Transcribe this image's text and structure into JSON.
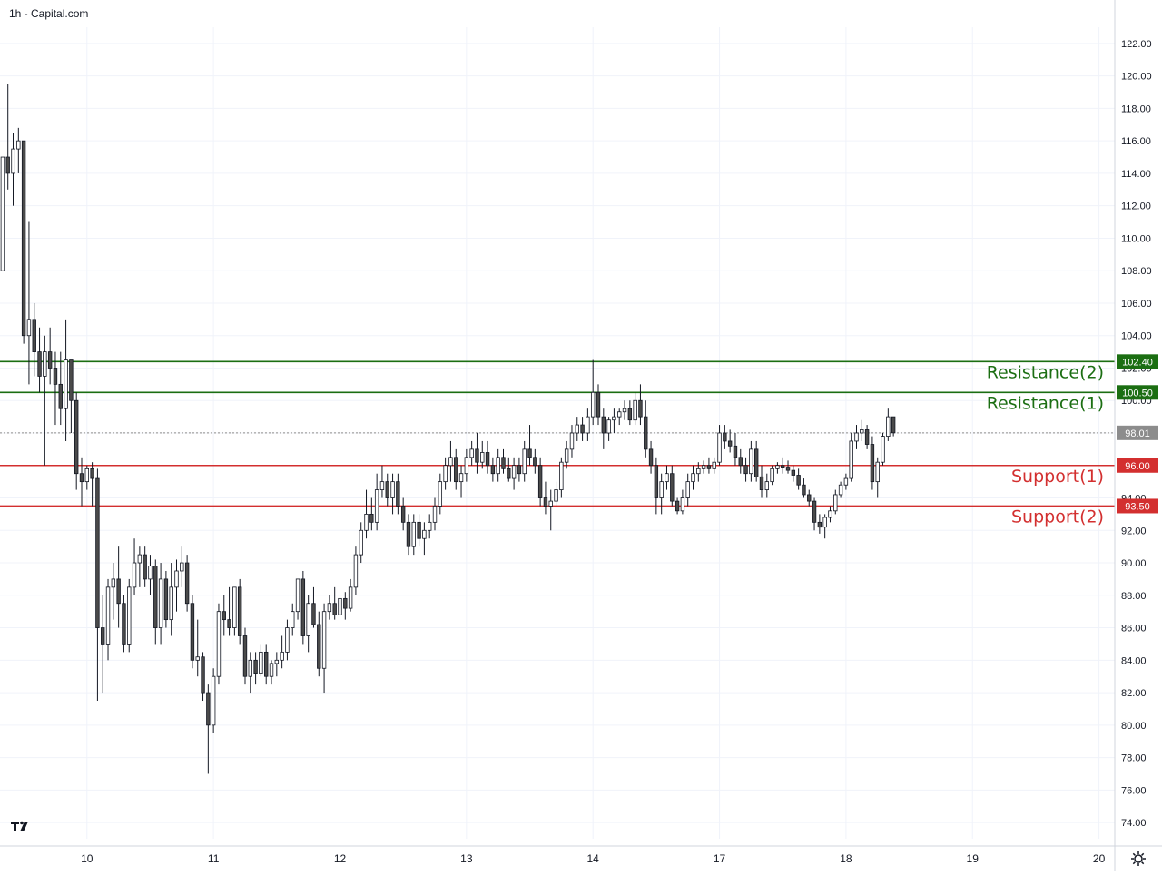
{
  "header": {
    "title": "1h - Capital.com"
  },
  "logo": {
    "icon": "tradingview-logo-icon"
  },
  "settings": {
    "icon": "gear-icon"
  },
  "colors": {
    "background": "#ffffff",
    "grid": "#f0f3fa",
    "candle_up_fill": "#ffffff",
    "candle_down_fill": "#4a4a4a",
    "candle_border": "#131722",
    "resistance": "#1b6e12",
    "support": "#d32f2f",
    "last_price": "#8c8c8c",
    "axis_text": "#131722"
  },
  "chart_data": {
    "type": "candlestick",
    "ylim": [
      73,
      123
    ],
    "y_ticks": [
      "122.00",
      "120.00",
      "118.00",
      "116.00",
      "114.00",
      "112.00",
      "110.00",
      "108.00",
      "106.00",
      "104.00",
      "102.00",
      "100.00",
      "98.00",
      "96.00",
      "94.00",
      "92.00",
      "90.00",
      "88.00",
      "86.00",
      "84.00",
      "82.00",
      "80.00",
      "78.00",
      "76.00",
      "74.00"
    ],
    "x_ticks": [
      {
        "label": "10",
        "t": 16
      },
      {
        "label": "11",
        "t": 40
      },
      {
        "label": "12",
        "t": 64
      },
      {
        "label": "13",
        "t": 88
      },
      {
        "label": "14",
        "t": 112
      },
      {
        "label": "17",
        "t": 136
      },
      {
        "label": "18",
        "t": 160
      },
      {
        "label": "19",
        "t": 184
      },
      {
        "label": "20",
        "t": 208
      }
    ],
    "x_range": [
      -0.5,
      211
    ],
    "levels": [
      {
        "name": "Resistance(2)",
        "value": 102.4,
        "label": "102.40",
        "kind": "resistance"
      },
      {
        "name": "Resistance(1)",
        "value": 100.5,
        "label": "100.50",
        "kind": "resistance"
      },
      {
        "name": "Support(1)",
        "value": 96.0,
        "label": "96.00",
        "kind": "support"
      },
      {
        "name": "Support(2)",
        "value": 93.5,
        "label": "93.50",
        "kind": "support"
      }
    ],
    "last_price": {
      "value": 98.01,
      "label": "98.01"
    },
    "candles": [
      [
        0,
        108,
        115,
        108,
        115
      ],
      [
        1,
        115,
        119.5,
        113,
        114
      ],
      [
        2,
        114,
        116.5,
        112,
        115.5
      ],
      [
        3,
        115.5,
        116.8,
        114,
        116
      ],
      [
        4,
        116,
        116,
        103.5,
        104
      ],
      [
        5,
        104,
        111,
        101,
        105
      ],
      [
        6,
        105,
        106,
        101.5,
        103
      ],
      [
        7,
        103,
        104.5,
        100.5,
        101.5
      ],
      [
        8,
        101.5,
        104,
        96,
        103
      ],
      [
        9,
        103,
        104.5,
        101,
        102
      ],
      [
        10,
        102,
        103,
        98.5,
        101
      ],
      [
        11,
        101,
        103,
        98.5,
        99.5
      ],
      [
        12,
        99.5,
        105,
        97.5,
        102.5
      ],
      [
        13,
        102.5,
        102.5,
        98,
        100
      ],
      [
        14,
        100,
        100.5,
        94.5,
        95.5
      ],
      [
        15,
        95.5,
        96.5,
        93.5,
        95
      ],
      [
        16,
        95,
        96,
        94.5,
        95.8
      ],
      [
        17,
        95.8,
        96.2,
        93.5,
        95.2
      ],
      [
        18,
        95.2,
        95.8,
        81.5,
        86
      ],
      [
        19,
        86,
        88,
        82,
        85
      ],
      [
        20,
        85,
        89,
        84,
        88.5
      ],
      [
        21,
        88.5,
        90,
        86.5,
        89
      ],
      [
        22,
        89,
        91,
        86,
        87.5
      ],
      [
        23,
        87.5,
        88,
        84.5,
        85
      ],
      [
        24,
        85,
        89,
        84.5,
        88.5
      ],
      [
        25,
        88.5,
        91.5,
        88,
        90
      ],
      [
        26,
        90,
        91,
        88.5,
        90.5
      ],
      [
        27,
        90.5,
        91,
        88.5,
        89
      ],
      [
        28,
        89,
        90.5,
        88,
        89.8
      ],
      [
        29,
        89.8,
        90.2,
        85,
        86
      ],
      [
        30,
        86,
        90,
        85,
        89
      ],
      [
        31,
        89,
        89.5,
        86,
        86.5
      ],
      [
        32,
        86.5,
        90,
        85.5,
        88.5
      ],
      [
        33,
        88.5,
        90.2,
        87,
        89.5
      ],
      [
        34,
        89.5,
        91,
        88.5,
        90
      ],
      [
        35,
        90,
        90.5,
        87,
        87.5
      ],
      [
        36,
        87.5,
        88,
        83.5,
        84
      ],
      [
        37,
        84,
        86.5,
        83,
        84.2
      ],
      [
        38,
        84.2,
        84.5,
        81.5,
        82
      ],
      [
        39,
        82,
        82.5,
        77,
        80
      ],
      [
        40,
        80,
        83.5,
        79.5,
        83
      ],
      [
        41,
        83,
        87.5,
        82.5,
        87
      ],
      [
        42,
        87,
        88,
        85.5,
        86.5
      ],
      [
        43,
        86.5,
        88.5,
        85.5,
        86
      ],
      [
        44,
        86,
        88.5,
        85.5,
        88.5
      ],
      [
        45,
        88.5,
        89,
        85,
        85.5
      ],
      [
        46,
        85.5,
        86,
        82.5,
        83
      ],
      [
        47,
        83,
        84.5,
        82,
        84
      ],
      [
        48,
        84,
        84.5,
        82.5,
        83.2
      ],
      [
        49,
        83.2,
        85,
        83,
        84.5
      ],
      [
        50,
        84.5,
        85,
        82.5,
        83
      ],
      [
        51,
        83,
        84,
        82.5,
        83.8
      ],
      [
        52,
        83.8,
        84.5,
        83,
        84
      ],
      [
        53,
        84,
        85.5,
        83.5,
        84.5
      ],
      [
        54,
        84.5,
        86.5,
        84,
        86
      ],
      [
        55,
        86,
        87.5,
        85.5,
        87
      ],
      [
        56,
        87,
        89,
        86.5,
        89
      ],
      [
        57,
        89,
        89.5,
        85,
        85.5
      ],
      [
        58,
        85.5,
        88,
        84.5,
        87.5
      ],
      [
        59,
        87.5,
        88.5,
        86,
        86.2
      ],
      [
        60,
        86.2,
        87,
        83,
        83.5
      ],
      [
        61,
        83.5,
        87.5,
        82,
        87
      ],
      [
        62,
        87,
        88,
        86.5,
        87.5
      ],
      [
        63,
        87.5,
        88.5,
        86.5,
        86.8
      ],
      [
        64,
        86.8,
        88,
        86,
        87.8
      ],
      [
        65,
        87.8,
        88.2,
        86.5,
        87.2
      ],
      [
        66,
        87.2,
        89,
        87,
        88.5
      ],
      [
        67,
        88.5,
        91,
        88,
        90.5
      ],
      [
        68,
        90.5,
        92.5,
        90,
        92
      ],
      [
        69,
        92,
        94.5,
        91.5,
        93
      ],
      [
        70,
        93,
        94,
        92,
        92.5
      ],
      [
        71,
        92.5,
        95.5,
        92,
        94.5
      ],
      [
        72,
        94.5,
        96,
        94,
        95
      ],
      [
        73,
        95,
        95.5,
        93.5,
        94
      ],
      [
        74,
        94,
        95.5,
        93,
        95
      ],
      [
        75,
        95,
        95.5,
        93,
        93.5
      ],
      [
        76,
        93.5,
        94,
        92,
        92.5
      ],
      [
        77,
        92.5,
        93,
        90.5,
        91
      ],
      [
        78,
        91,
        93,
        90.5,
        92.5
      ],
      [
        79,
        92.5,
        93,
        91,
        91.5
      ],
      [
        80,
        91.5,
        92.5,
        90.5,
        92
      ],
      [
        81,
        92,
        93,
        91.5,
        92.5
      ],
      [
        82,
        92.5,
        94,
        92,
        93.5
      ],
      [
        83,
        93.5,
        95.5,
        93,
        95
      ],
      [
        84,
        95,
        96.5,
        94.5,
        96
      ],
      [
        85,
        96,
        97.5,
        95,
        96.5
      ],
      [
        86,
        96.5,
        97,
        94.5,
        95
      ],
      [
        87,
        95,
        96,
        94,
        95.5
      ],
      [
        88,
        95.5,
        97,
        95,
        96.5
      ],
      [
        89,
        96.5,
        97.5,
        96,
        97
      ],
      [
        90,
        97,
        98,
        95.5,
        96.2
      ],
      [
        91,
        96.2,
        97.5,
        95.8,
        96.8
      ],
      [
        92,
        96.8,
        97.5,
        95.5,
        96
      ],
      [
        93,
        96,
        96.5,
        95,
        95.5
      ],
      [
        94,
        95.5,
        97,
        95,
        96.5
      ],
      [
        95,
        96.5,
        97,
        95.5,
        95.8
      ],
      [
        96,
        95.8,
        96.5,
        95,
        95.2
      ],
      [
        97,
        95.2,
        96.5,
        94.5,
        96
      ],
      [
        98,
        96,
        96.5,
        95,
        95.5
      ],
      [
        99,
        95.5,
        97.5,
        95,
        97
      ],
      [
        100,
        97,
        98.5,
        96,
        96.5
      ],
      [
        101,
        96.5,
        97,
        95.5,
        96
      ],
      [
        102,
        96,
        96.5,
        93.5,
        94
      ],
      [
        103,
        94,
        95,
        93,
        93.5
      ],
      [
        104,
        93.5,
        94.5,
        92,
        93.8
      ],
      [
        105,
        93.8,
        95,
        93.5,
        94.5
      ],
      [
        106,
        94.5,
        96.5,
        94,
        96.2
      ],
      [
        107,
        96.2,
        97.5,
        95.8,
        97
      ],
      [
        108,
        97,
        98.5,
        96.5,
        98
      ],
      [
        109,
        98,
        99,
        97.5,
        98.5
      ],
      [
        110,
        98.5,
        99,
        97.5,
        98
      ],
      [
        111,
        98,
        99.5,
        97.5,
        99
      ],
      [
        112,
        99,
        102.5,
        98.5,
        100.5
      ],
      [
        113,
        100.5,
        101,
        98.5,
        99
      ],
      [
        114,
        99,
        99.5,
        97,
        98
      ],
      [
        115,
        98,
        99,
        97.5,
        98.8
      ],
      [
        116,
        98.8,
        99.5,
        98,
        99
      ],
      [
        117,
        99,
        99.5,
        98.5,
        99.3
      ],
      [
        118,
        99.3,
        100,
        98.8,
        99.5
      ],
      [
        119,
        99.5,
        100,
        98.5,
        98.8
      ],
      [
        120,
        98.8,
        100.5,
        98.5,
        100
      ],
      [
        121,
        100,
        101,
        98.5,
        99
      ],
      [
        122,
        99,
        100,
        96.5,
        97
      ],
      [
        123,
        97,
        97.5,
        95.5,
        96
      ],
      [
        124,
        96,
        96.5,
        93,
        94
      ],
      [
        125,
        94,
        95.5,
        93,
        95
      ],
      [
        126,
        95,
        96,
        94.5,
        95.5
      ],
      [
        127,
        95.5,
        96,
        93.5,
        93.8
      ],
      [
        128,
        93.8,
        94,
        93,
        93.2
      ],
      [
        129,
        93.2,
        94.5,
        93,
        94
      ],
      [
        130,
        94,
        95.5,
        93.5,
        95
      ],
      [
        131,
        95,
        96,
        94.5,
        95.5
      ],
      [
        132,
        95.5,
        96.2,
        95,
        95.8
      ],
      [
        133,
        95.8,
        96.3,
        95.5,
        96
      ],
      [
        134,
        96,
        96.5,
        95.5,
        95.8
      ],
      [
        135,
        95.8,
        96.5,
        95.5,
        96.2
      ],
      [
        136,
        96.2,
        98.5,
        96,
        98
      ],
      [
        137,
        98,
        98.5,
        97,
        97.5
      ],
      [
        138,
        97.5,
        98.2,
        96.8,
        97.2
      ],
      [
        139,
        97.2,
        98,
        96,
        96.5
      ],
      [
        140,
        96.5,
        97,
        95.5,
        96
      ],
      [
        141,
        96,
        96.5,
        95,
        95.5
      ],
      [
        142,
        95.5,
        97.5,
        95,
        97
      ],
      [
        143,
        97,
        97.5,
        95,
        95.3
      ],
      [
        144,
        95.3,
        96,
        94,
        94.5
      ],
      [
        145,
        94.5,
        95.5,
        94,
        95
      ],
      [
        146,
        95,
        96,
        94.8,
        95.8
      ],
      [
        147,
        95.8,
        96.2,
        95.5,
        96
      ],
      [
        148,
        96,
        96.5,
        95.5,
        95.9
      ],
      [
        149,
        95.9,
        96.3,
        95.5,
        95.7
      ],
      [
        150,
        95.7,
        96,
        95,
        95.4
      ],
      [
        151,
        95.4,
        95.8,
        94.5,
        94.8
      ],
      [
        152,
        94.8,
        95.2,
        94,
        94.2
      ],
      [
        153,
        94.2,
        94.5,
        93.5,
        93.8
      ],
      [
        154,
        93.8,
        94,
        92,
        92.5
      ],
      [
        155,
        92.5,
        93,
        91.8,
        92.2
      ],
      [
        156,
        92.2,
        93,
        91.5,
        92.8
      ],
      [
        157,
        92.8,
        93.5,
        92.5,
        93.2
      ],
      [
        158,
        93.2,
        94.5,
        93,
        94.2
      ],
      [
        159,
        94.2,
        95,
        94,
        94.8
      ],
      [
        160,
        94.8,
        95.5,
        94.5,
        95.2
      ],
      [
        161,
        95.2,
        98,
        95,
        97.5
      ],
      [
        162,
        97.5,
        98.5,
        97,
        98
      ],
      [
        163,
        98,
        98.8,
        97.5,
        98.2
      ],
      [
        164,
        98.2,
        98.5,
        97,
        97.3
      ],
      [
        165,
        97.3,
        97.8,
        94.5,
        95
      ],
      [
        166,
        95,
        96.5,
        94,
        96.2
      ],
      [
        167,
        96.2,
        98,
        96,
        97.8
      ],
      [
        168,
        97.8,
        99.5,
        97.5,
        99
      ],
      [
        169,
        99,
        99,
        97.8,
        98.01
      ]
    ]
  }
}
